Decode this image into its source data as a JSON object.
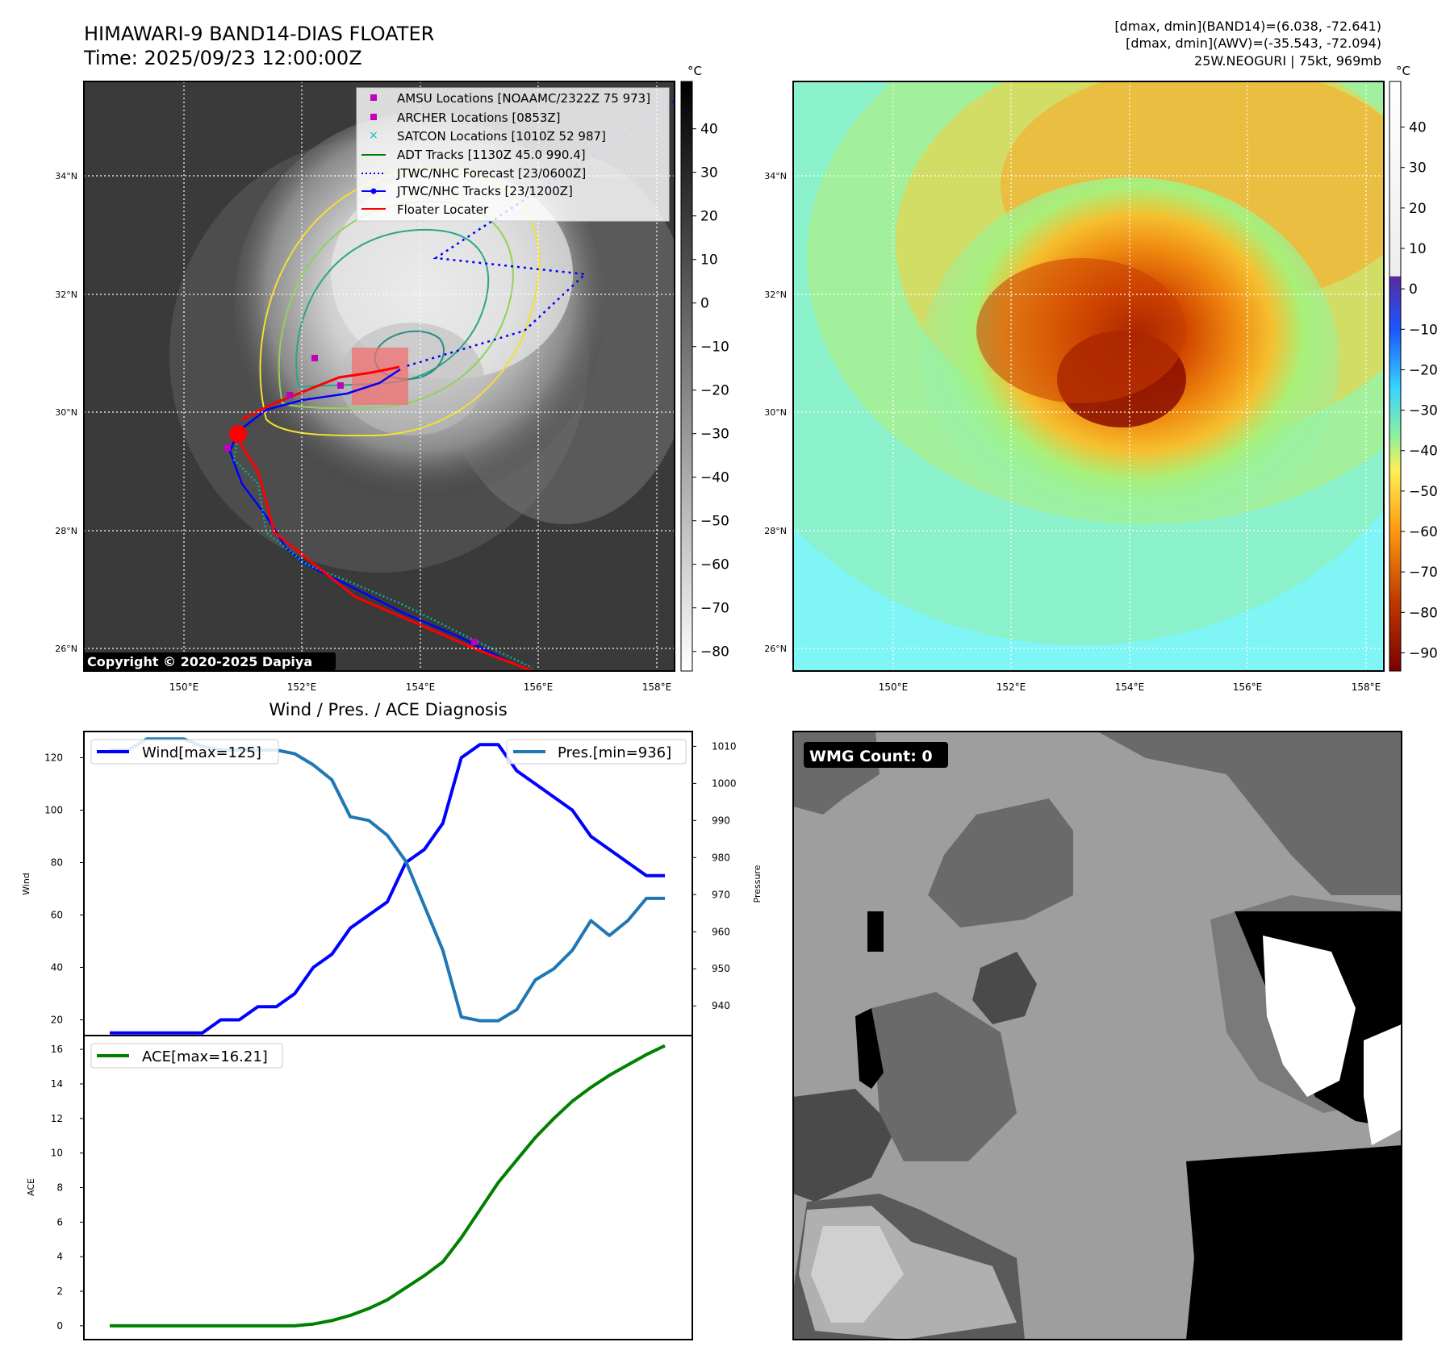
{
  "header": {
    "title_line1": "HIMAWARI-9 BAND14-DIAS FLOATER",
    "title_line2": "Time: 2025/09/23 12:00:00Z",
    "info_line1": "[dmax, dmin](BAND14)=(6.038, -72.641)",
    "info_line2": "[dmax, dmin](AWV)=(-35.543, -72.094)",
    "info_line3": "25W.NEOGURI | 75kt, 969mb"
  },
  "maps": {
    "lon_ticks": [
      "150°E",
      "152°E",
      "154°E",
      "156°E",
      "158°E"
    ],
    "lat_ticks": [
      "34°N",
      "32°N",
      "30°N",
      "28°N",
      "26°N"
    ],
    "copyright": "Copyright © 2020-2025 Dapiya",
    "colorbar_unit": "°C",
    "ir_colorbar_ticks": [
      "40",
      "30",
      "20",
      "10",
      "0",
      "−10",
      "−20",
      "−30",
      "−40",
      "−50",
      "−60",
      "−70",
      "−80"
    ],
    "wv_colorbar_ticks": [
      "40",
      "30",
      "20",
      "10",
      "0",
      "−10",
      "−20",
      "−30",
      "−40",
      "−50",
      "−60",
      "−70",
      "−80",
      "−90"
    ],
    "legend": [
      {
        "label": "AMSU Locations [NOAAMC/2322Z 75 973]",
        "color": "#bf00bf",
        "marker": "square"
      },
      {
        "label": "ARCHER Locations [0853Z]",
        "color": "#bf00bf",
        "marker": "square"
      },
      {
        "label": "SATCON Locations [1010Z 52 987]",
        "color": "#00bfbf",
        "marker": "x"
      },
      {
        "label": "ADT Tracks [1130Z 45.0 990.4]",
        "color": "#008000",
        "marker": "line"
      },
      {
        "label": "JTWC/NHC Forecast [23/0600Z]",
        "color": "#0000ff",
        "marker": "dotted"
      },
      {
        "label": "JTWC/NHC Tracks [23/1200Z]",
        "color": "#0000ff",
        "marker": "line-dot"
      },
      {
        "label": "Floater Locater",
        "color": "#ff0000",
        "marker": "line"
      }
    ]
  },
  "wmg": {
    "label": "WMG Count: 0"
  },
  "chart_data": [
    {
      "type": "line",
      "title": "Wind / Pres. / ACE Diagnosis",
      "ylabel": "Wind",
      "y2label": "Pressure",
      "ylim": [
        14,
        130
      ],
      "y2lim": [
        932,
        1014
      ],
      "yticks": [
        20,
        40,
        60,
        80,
        100,
        120
      ],
      "y2ticks": [
        940,
        950,
        960,
        970,
        980,
        990,
        1000,
        1010
      ],
      "series": [
        {
          "name": "Wind[max=125]",
          "axis": "left",
          "color": "#0000ff",
          "values": [
            15,
            15,
            15,
            15,
            15,
            15,
            20,
            20,
            25,
            25,
            30,
            40,
            45,
            55,
            60,
            65,
            80,
            85,
            95,
            120,
            125,
            125,
            115,
            110,
            105,
            100,
            90,
            85,
            80,
            75,
            75
          ]
        },
        {
          "name": "Pres.[min=936]",
          "axis": "right",
          "color": "#1f77b4",
          "values": [
            1009,
            1009,
            1012,
            1012,
            1012,
            1010,
            1009,
            1009,
            1009,
            1009,
            1008,
            1005,
            1001,
            991,
            990,
            986,
            979,
            967,
            955,
            937,
            936,
            936,
            939,
            947,
            950,
            955,
            963,
            959,
            963,
            969,
            969
          ]
        }
      ]
    },
    {
      "type": "line",
      "ylabel": "ACE",
      "ylim": [
        -0.8,
        16.8
      ],
      "yticks": [
        0,
        2,
        4,
        6,
        8,
        10,
        12,
        14,
        16
      ],
      "series": [
        {
          "name": "ACE[max=16.21]",
          "color": "#008000",
          "values": [
            0,
            0,
            0,
            0,
            0,
            0,
            0,
            0,
            0,
            0,
            0,
            0.1,
            0.3,
            0.6,
            1.0,
            1.5,
            2.2,
            2.9,
            3.7,
            5.1,
            6.7,
            8.3,
            9.6,
            10.9,
            12.0,
            13.0,
            13.8,
            14.5,
            15.1,
            15.7,
            16.21
          ]
        }
      ]
    }
  ]
}
